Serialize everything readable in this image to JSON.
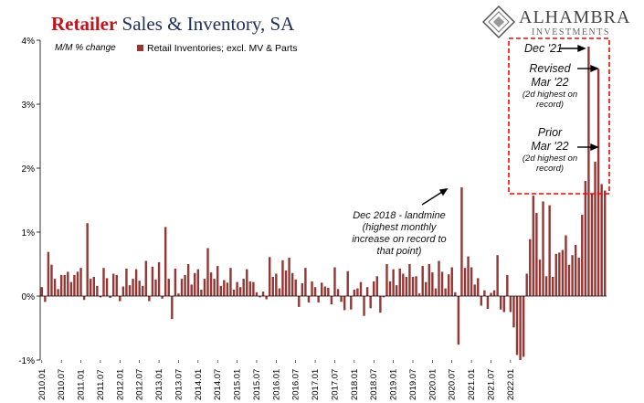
{
  "header": {
    "title_accent": "Retailer",
    "title_rest": "Sales & Inventory, SA",
    "logo_name": "ALHAMBRA",
    "logo_sub": "INVESTMENTS",
    "logo_icon": "diamond-icon"
  },
  "chart_data": {
    "type": "bar",
    "ylabel_note": "M/M % change",
    "ylim": [
      -1,
      4
    ],
    "yticks": [
      "-1%",
      "0%",
      "1%",
      "2%",
      "3%",
      "4%"
    ],
    "ytick_values": [
      -1,
      0,
      1,
      2,
      3,
      4
    ],
    "x_tick_labels": [
      "2010.01",
      "2010.07",
      "2011.01",
      "2011.07",
      "2012.01",
      "2012.07",
      "2013.01",
      "2013.07",
      "2014.01",
      "2014.07",
      "2015.01",
      "2015.07",
      "2016.01",
      "2016.07",
      "2017.01",
      "2017.07",
      "2018.01",
      "2018.07",
      "2019.01",
      "2019.07",
      "2020.01",
      "2020.07",
      "2021.01",
      "2021.07",
      "2022.01"
    ],
    "start_period": "2010.01",
    "series": [
      {
        "name": "Retail Inventories; excl. MV & Parts",
        "color": "#953735",
        "values": [
          0.14,
          -0.09,
          0.69,
          0.49,
          0.27,
          0.11,
          0.33,
          0.33,
          0.38,
          0.22,
          0.33,
          0.38,
          0.44,
          -0.06,
          1.14,
          0.27,
          0.3,
          0.16,
          -0.02,
          0.44,
          0.28,
          -0.03,
          0.35,
          0.33,
          -0.08,
          0.15,
          0.43,
          0.17,
          0.27,
          0.42,
          0.24,
          0.16,
          0.55,
          -0.08,
          0.46,
          0.26,
          0.53,
          -0.04,
          1.08,
          0.27,
          -0.36,
          0.43,
          0.04,
          0.27,
          0.33,
          0.5,
          0.18,
          0.36,
          0.42,
          0.1,
          0.27,
          0.75,
          0.37,
          0.27,
          0.47,
          0.16,
          0.25,
          0.21,
          0.44,
          0.1,
          0.22,
          0.14,
          0.27,
          0.42,
          0.23,
          0.22,
          0.06,
          -0.02,
          0.07,
          -0.05,
          0.61,
          0.3,
          0.35,
          0.12,
          0.56,
          0.4,
          0.6,
          0.36,
          0.26,
          -0.17,
          0.2,
          0.44,
          -0.1,
          0.23,
          0.14,
          -0.1,
          0.21,
          0.15,
          0.13,
          -0.13,
          0.45,
          0.11,
          -0.09,
          -0.22,
          0.39,
          -0.21,
          0.1,
          0.12,
          0.22,
          -0.31,
          0.14,
          -0.19,
          0.23,
          0.31,
          -0.26,
          -0.02,
          0.5,
          0.23,
          0.42,
          0.17,
          0.43,
          0.35,
          0.3,
          0.5,
          0.3,
          0.31,
          0.04,
          0.47,
          0.22,
          0.5,
          0.37,
          0.12,
          0.55,
          0.38,
          0.12,
          0.34,
          0.45,
          0.06,
          -0.76,
          1.7,
          0.44,
          0.62,
          0.45,
          0.18,
          0.28,
          -0.15,
          0.09,
          -0.2,
          0.05,
          0.09,
          0.64,
          -0.21,
          -0.25,
          0.33,
          -0.25,
          -0.49,
          -0.92,
          -1.0,
          -0.95,
          0.35,
          0.89,
          1.57,
          1.3,
          0.57,
          1.48,
          0.31,
          1.42,
          0.3,
          0.66,
          0.68,
          0.72,
          0.95,
          0.49,
          0.64,
          0.8,
          0.6,
          1.27,
          1.8,
          3.9,
          1.6,
          2.1,
          3.55,
          1.75,
          1.65
        ]
      }
    ],
    "annotations": {
      "dec2018_line1": "Dec 2018 - landmine",
      "dec2018_line2": "(highest monthly",
      "dec2018_line3": "increase on record to",
      "dec2018_line4": "that point)",
      "dec21": "Dec '21",
      "revised_line1": "Revised",
      "revised_line2": "Mar '22",
      "revised_sub1": "(2d highest on",
      "revised_sub2": "record)",
      "prior_line1": "Prior",
      "prior_line2": "Mar '22",
      "prior_sub1": "(2d highest on",
      "prior_sub2": "record)"
    },
    "colors": {
      "bar": "#953735",
      "highlight_box": "#ff0000",
      "axis": "#000000"
    }
  }
}
